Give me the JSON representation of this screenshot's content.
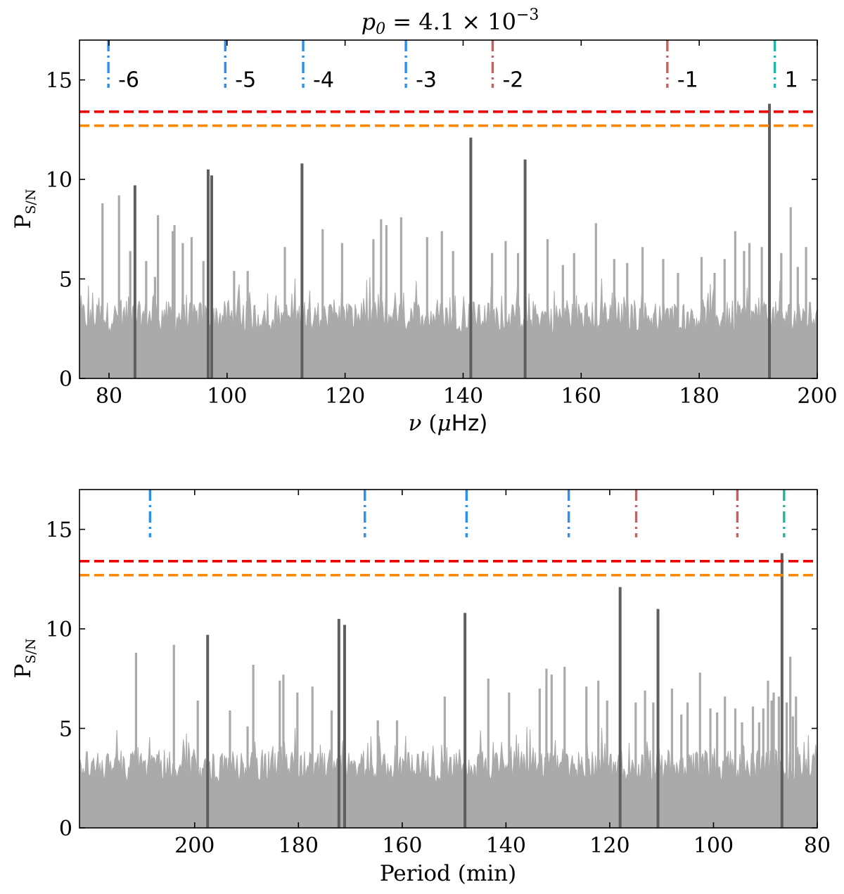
{
  "figure": {
    "title_main": "p",
    "title_sub": "0",
    "title_rest": " = 4.1 × 10",
    "title_exp": "−3"
  },
  "colors": {
    "noise": "#aaaaaa",
    "peak": "#5f5f5f",
    "prograde": "#2a8ff0",
    "retrograde": "#cd5c5c",
    "axisymmetric": "#22b5a5",
    "threshold_high": "#ee0000",
    "threshold_low": "#ff8800"
  },
  "chart_data": [
    {
      "type": "line",
      "panel": "frequency",
      "title": "p0 = 4.1 × 10^-3",
      "xlabel": "ν (μHz)",
      "xlabel_parts": {
        "sym": "ν",
        "open": " (",
        "mu": "μ",
        "unit": "Hz)"
      },
      "ylabel_main": "P",
      "ylabel_sub": "S/N",
      "xlim": [
        75,
        200
      ],
      "ylim": [
        0,
        17
      ],
      "x_ticks": [
        80,
        100,
        120,
        140,
        160,
        180,
        200
      ],
      "y_ticks": [
        0,
        5,
        10,
        15
      ],
      "thresholds": [
        {
          "name": "high",
          "y": 13.4,
          "color": "#ee0000"
        },
        {
          "name": "low",
          "y": 12.7,
          "color": "#ff8800"
        }
      ],
      "mode_markers": [
        {
          "x": 79.9,
          "label": "-6",
          "group": "prograde"
        },
        {
          "x": 99.7,
          "label": "-5",
          "group": "prograde"
        },
        {
          "x": 112.9,
          "label": "-4",
          "group": "prograde"
        },
        {
          "x": 130.3,
          "label": "-3",
          "group": "prograde"
        },
        {
          "x": 145.0,
          "label": "-2",
          "group": "retrograde"
        },
        {
          "x": 174.6,
          "label": "-1",
          "group": "retrograde"
        },
        {
          "x": 192.8,
          "label": "1",
          "group": "axisymmetric"
        }
      ],
      "significant_peaks": [
        {
          "x": 84.4,
          "y": 9.7
        },
        {
          "x": 96.8,
          "y": 10.5
        },
        {
          "x": 97.4,
          "y": 10.2
        },
        {
          "x": 112.7,
          "y": 10.8
        },
        {
          "x": 141.3,
          "y": 12.1
        },
        {
          "x": 150.5,
          "y": 11.0
        },
        {
          "x": 191.9,
          "y": 13.8
        }
      ],
      "noise_spikes": [
        {
          "x": 78.9,
          "y": 8.8
        },
        {
          "x": 81.7,
          "y": 9.2
        },
        {
          "x": 83.6,
          "y": 6.4
        },
        {
          "x": 86.3,
          "y": 5.9
        },
        {
          "x": 87.8,
          "y": 5.1
        },
        {
          "x": 88.3,
          "y": 8.2
        },
        {
          "x": 90.8,
          "y": 7.4
        },
        {
          "x": 91.1,
          "y": 7.7
        },
        {
          "x": 92.5,
          "y": 6.8
        },
        {
          "x": 94.0,
          "y": 7.1
        },
        {
          "x": 96.0,
          "y": 5.9
        },
        {
          "x": 101.2,
          "y": 5.4
        },
        {
          "x": 103.5,
          "y": 5.4
        },
        {
          "x": 109.8,
          "y": 6.6
        },
        {
          "x": 116.2,
          "y": 7.5
        },
        {
          "x": 119.5,
          "y": 6.8
        },
        {
          "x": 124.8,
          "y": 7.0
        },
        {
          "x": 126.1,
          "y": 8.0
        },
        {
          "x": 127.0,
          "y": 7.7
        },
        {
          "x": 129.5,
          "y": 8.1
        },
        {
          "x": 133.9,
          "y": 7.1
        },
        {
          "x": 136.4,
          "y": 7.4
        },
        {
          "x": 138.3,
          "y": 6.4
        },
        {
          "x": 144.9,
          "y": 6.3
        },
        {
          "x": 147.2,
          "y": 6.9
        },
        {
          "x": 149.3,
          "y": 6.3
        },
        {
          "x": 154.3,
          "y": 7.0
        },
        {
          "x": 156.9,
          "y": 5.7
        },
        {
          "x": 158.8,
          "y": 6.3
        },
        {
          "x": 162.5,
          "y": 7.8
        },
        {
          "x": 165.6,
          "y": 6.0
        },
        {
          "x": 167.8,
          "y": 5.8
        },
        {
          "x": 170.4,
          "y": 6.6
        },
        {
          "x": 173.9,
          "y": 6.0
        },
        {
          "x": 176.4,
          "y": 5.3
        },
        {
          "x": 180.4,
          "y": 6.1
        },
        {
          "x": 182.6,
          "y": 5.3
        },
        {
          "x": 184.3,
          "y": 6.0
        },
        {
          "x": 186.1,
          "y": 7.4
        },
        {
          "x": 187.6,
          "y": 6.4
        },
        {
          "x": 188.5,
          "y": 6.8
        },
        {
          "x": 190.6,
          "y": 6.6
        },
        {
          "x": 193.9,
          "y": 6.3
        },
        {
          "x": 195.5,
          "y": 8.6
        },
        {
          "x": 196.7,
          "y": 5.6
        },
        {
          "x": 198.1,
          "y": 6.6
        }
      ]
    },
    {
      "type": "line",
      "panel": "period",
      "xlabel": "Period (min)",
      "ylabel_main": "P",
      "ylabel_sub": "S/N",
      "xlim": [
        222.2,
        80
      ],
      "ylim": [
        0,
        17
      ],
      "x_ticks": [
        200,
        180,
        160,
        140,
        120,
        100,
        80
      ],
      "y_ticks": [
        0,
        5,
        10,
        15
      ],
      "thresholds": [
        {
          "name": "high",
          "y": 13.4,
          "color": "#ee0000"
        },
        {
          "name": "low",
          "y": 12.7,
          "color": "#ff8800"
        }
      ],
      "mode_markers": [
        {
          "x": 208.6,
          "group": "prograde"
        },
        {
          "x": 167.2,
          "group": "prograde"
        },
        {
          "x": 147.6,
          "group": "prograde"
        },
        {
          "x": 127.9,
          "group": "prograde"
        },
        {
          "x": 114.9,
          "group": "retrograde"
        },
        {
          "x": 95.4,
          "group": "retrograde"
        },
        {
          "x": 86.4,
          "group": "axisymmetric"
        }
      ],
      "significant_peaks": [
        {
          "x": 197.5,
          "y": 9.7
        },
        {
          "x": 172.2,
          "y": 10.5
        },
        {
          "x": 171.1,
          "y": 10.2
        },
        {
          "x": 147.9,
          "y": 10.8
        },
        {
          "x": 118.0,
          "y": 12.1
        },
        {
          "x": 110.7,
          "y": 11.0
        },
        {
          "x": 86.8,
          "y": 13.8
        }
      ],
      "noise_spikes": [
        {
          "x": 211.3,
          "y": 8.8
        },
        {
          "x": 204.0,
          "y": 9.2
        },
        {
          "x": 199.4,
          "y": 6.4
        },
        {
          "x": 193.2,
          "y": 5.9
        },
        {
          "x": 189.8,
          "y": 5.1
        },
        {
          "x": 188.7,
          "y": 8.2
        },
        {
          "x": 183.6,
          "y": 7.4
        },
        {
          "x": 182.9,
          "y": 7.7
        },
        {
          "x": 180.2,
          "y": 6.8
        },
        {
          "x": 177.3,
          "y": 7.1
        },
        {
          "x": 173.6,
          "y": 5.9
        },
        {
          "x": 164.7,
          "y": 5.4
        },
        {
          "x": 161.0,
          "y": 5.4
        },
        {
          "x": 151.8,
          "y": 6.6
        },
        {
          "x": 143.4,
          "y": 7.5
        },
        {
          "x": 139.4,
          "y": 6.8
        },
        {
          "x": 133.5,
          "y": 7.0
        },
        {
          "x": 132.2,
          "y": 8.0
        },
        {
          "x": 131.2,
          "y": 7.7
        },
        {
          "x": 128.7,
          "y": 8.1
        },
        {
          "x": 124.5,
          "y": 7.1
        },
        {
          "x": 122.2,
          "y": 7.4
        },
        {
          "x": 120.5,
          "y": 6.4
        },
        {
          "x": 115.0,
          "y": 6.3
        },
        {
          "x": 113.2,
          "y": 6.9
        },
        {
          "x": 111.6,
          "y": 6.3
        },
        {
          "x": 108.0,
          "y": 7.0
        },
        {
          "x": 106.2,
          "y": 5.7
        },
        {
          "x": 105.0,
          "y": 6.3
        },
        {
          "x": 102.6,
          "y": 7.8
        },
        {
          "x": 100.6,
          "y": 6.0
        },
        {
          "x": 99.3,
          "y": 5.8
        },
        {
          "x": 97.8,
          "y": 6.6
        },
        {
          "x": 95.8,
          "y": 6.0
        },
        {
          "x": 94.5,
          "y": 5.3
        },
        {
          "x": 92.4,
          "y": 6.1
        },
        {
          "x": 91.2,
          "y": 5.3
        },
        {
          "x": 90.4,
          "y": 6.0
        },
        {
          "x": 89.5,
          "y": 7.4
        },
        {
          "x": 88.8,
          "y": 6.4
        },
        {
          "x": 88.4,
          "y": 6.8
        },
        {
          "x": 87.4,
          "y": 6.6
        },
        {
          "x": 85.9,
          "y": 6.3
        },
        {
          "x": 85.2,
          "y": 8.6
        },
        {
          "x": 84.7,
          "y": 5.6
        },
        {
          "x": 84.1,
          "y": 6.6
        }
      ]
    }
  ]
}
